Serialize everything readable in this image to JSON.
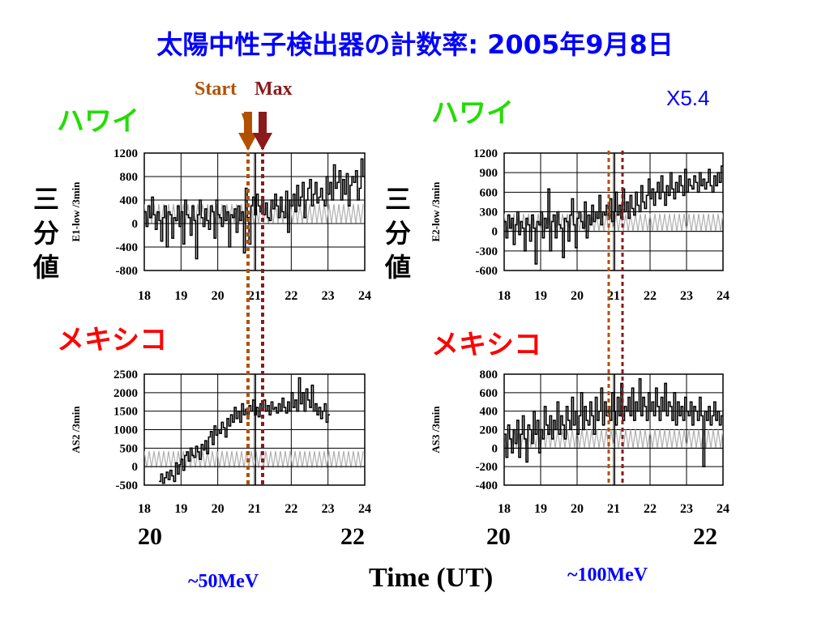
{
  "slide": {
    "title": "太陽中性子検出器の計数率: 2005年9月8日",
    "start_label": "Start",
    "max_label": "Max",
    "flare_class": "X5.4",
    "site_hawaii": "ハワイ",
    "site_mexico": "メキシコ",
    "vertical_label": "三分値",
    "time_label": "Time (UT)",
    "energy_left": "~50MeV",
    "energy_right": "~100MeV",
    "big_ticks": [
      "20",
      "22",
      "20",
      "22"
    ],
    "colors": {
      "title": "#0000ff",
      "hawaii": "#22dd00",
      "mexico": "#ff0000",
      "start_marker": "#b25000",
      "max_marker": "#8b1a1a"
    }
  },
  "chart_data": [
    {
      "type": "line",
      "ylabel": "E1-low /3min",
      "xlim": [
        18,
        24
      ],
      "ylim": [
        -800,
        1200
      ],
      "yticks": [
        1200,
        800,
        400,
        0,
        -400,
        -800
      ],
      "xticks": [
        18,
        19,
        20,
        21,
        22,
        23,
        24
      ],
      "start_time": 20.9,
      "max_time": 21.25,
      "bg_min": 0,
      "bg_max": 330,
      "x_start": 18,
      "x_step": 0.05,
      "values": [
        200,
        -50,
        300,
        100,
        450,
        150,
        -100,
        200,
        50,
        -300,
        100,
        300,
        -400,
        200,
        150,
        -250,
        100,
        50,
        300,
        -50,
        200,
        -350,
        400,
        150,
        100,
        -200,
        300,
        50,
        -600,
        150,
        400,
        100,
        -50,
        250,
        50,
        -100,
        300,
        200,
        -250,
        400,
        150,
        100,
        -50,
        300,
        50,
        200,
        -400,
        150,
        100,
        250,
        -150,
        300,
        50,
        200,
        -500,
        600,
        100,
        -350,
        300,
        450,
        150,
        500,
        300,
        200,
        450,
        150,
        350,
        100,
        50,
        400,
        250,
        500,
        300,
        100,
        450,
        200,
        100,
        550,
        -150,
        400,
        300,
        500,
        200,
        650,
        300,
        450,
        700,
        100,
        400,
        600,
        750,
        300,
        500,
        700,
        350,
        450,
        600,
        400,
        300,
        800,
        500,
        700,
        400,
        1000,
        600,
        700,
        900,
        400,
        750,
        500,
        850,
        300,
        650,
        800,
        700,
        900,
        400,
        600,
        1100,
        800
      ]
    },
    {
      "type": "line",
      "ylabel": "E2-low /3min",
      "xlim": [
        18,
        24
      ],
      "ylim": [
        -600,
        1200
      ],
      "yticks": [
        1200,
        900,
        600,
        300,
        0,
        -300,
        -600
      ],
      "xticks": [
        18,
        19,
        20,
        21,
        22,
        23,
        24
      ],
      "start_time": 20.9,
      "max_time": 21.25,
      "bg_min": 0,
      "bg_max": 270,
      "x_start": 18,
      "x_step": 0.05,
      "values": [
        150,
        -100,
        250,
        50,
        200,
        -200,
        100,
        300,
        -50,
        150,
        50,
        -300,
        200,
        100,
        -150,
        250,
        50,
        -500,
        150,
        100,
        300,
        -100,
        200,
        50,
        650,
        -300,
        150,
        250,
        -100,
        300,
        100,
        50,
        -400,
        200,
        150,
        -150,
        250,
        500,
        100,
        -250,
        200,
        300,
        150,
        50,
        450,
        -100,
        250,
        100,
        400,
        150,
        300,
        200,
        550,
        100,
        300,
        250,
        400,
        200,
        500,
        150,
        300,
        600,
        250,
        400,
        200,
        650,
        300,
        450,
        200,
        550,
        350,
        250,
        600,
        400,
        300,
        700,
        450,
        350,
        550,
        800,
        500,
        650,
        400,
        600,
        750,
        500,
        850,
        600,
        400,
        700,
        550,
        900,
        650,
        500,
        750,
        600,
        850,
        700,
        550,
        950,
        600,
        800,
        700,
        650,
        850,
        750,
        600,
        900,
        700,
        800,
        650,
        750,
        950,
        700,
        600,
        850,
        700,
        900,
        750,
        1000
      ]
    },
    {
      "type": "line",
      "ylabel": "AS2 /3min",
      "xlim": [
        18,
        24
      ],
      "ylim": [
        -500,
        2500
      ],
      "yticks": [
        2500,
        2000,
        1500,
        1000,
        500,
        0,
        -500
      ],
      "xticks": [
        18,
        19,
        20,
        21,
        22,
        23,
        24
      ],
      "start_time": 20.9,
      "max_time": 21.25,
      "bg_min": -30,
      "bg_max": 420,
      "x_start": 18.4,
      "x_step": 0.05,
      "values": [
        -400,
        -200,
        -450,
        -300,
        -150,
        -350,
        -100,
        -250,
        -400,
        100,
        -200,
        50,
        200,
        -100,
        300,
        400,
        150,
        500,
        300,
        250,
        550,
        400,
        200,
        600,
        450,
        700,
        350,
        800,
        950,
        600,
        1100,
        850,
        1000,
        900,
        1200,
        1050,
        800,
        1300,
        1100,
        1400,
        1200,
        1600,
        1300,
        1500,
        1200,
        1700,
        1400,
        1550,
        1300,
        1650,
        1500,
        1800,
        1400,
        1600,
        1350,
        1700,
        1550,
        1800,
        1500,
        1650,
        1400,
        1750,
        1550,
        1600,
        1450,
        1700,
        1500,
        1850,
        1600,
        1450,
        1750,
        1500,
        2000,
        1600,
        1800,
        1500,
        2400,
        1700,
        2000,
        1500,
        2100,
        1800,
        1600,
        2200,
        1500,
        1700,
        1400,
        1600,
        1300,
        1500,
        1700,
        1200,
        1400
      ]
    },
    {
      "type": "line",
      "ylabel": "AS3 /3min",
      "xlim": [
        18,
        24
      ],
      "ylim": [
        -400,
        800
      ],
      "yticks": [
        800,
        600,
        400,
        200,
        0,
        -200,
        -400
      ],
      "xticks": [
        18,
        19,
        20,
        21,
        22,
        23,
        24
      ],
      "start_time": 20.9,
      "max_time": 21.25,
      "bg_min": 0,
      "bg_max": 200,
      "x_start": 18,
      "x_step": 0.05,
      "values": [
        150,
        -100,
        250,
        100,
        -50,
        200,
        50,
        300,
        -100,
        150,
        350,
        100,
        -150,
        250,
        200,
        50,
        400,
        150,
        300,
        -50,
        200,
        100,
        450,
        250,
        150,
        350,
        100,
        300,
        200,
        500,
        150,
        350,
        250,
        100,
        450,
        300,
        200,
        550,
        250,
        400,
        150,
        350,
        600,
        200,
        450,
        300,
        250,
        500,
        350,
        150,
        550,
        300,
        400,
        650,
        250,
        500,
        350,
        450,
        300,
        600,
        400,
        250,
        550,
        350,
        700,
        300,
        450,
        400,
        550,
        350,
        650,
        300,
        500,
        400,
        750,
        350,
        550,
        450,
        300,
        600,
        400,
        500,
        350,
        650,
        450,
        300,
        550,
        400,
        700,
        350,
        500,
        450,
        300,
        600,
        250,
        500,
        350,
        450,
        300,
        550,
        400,
        350,
        500,
        250,
        450,
        400,
        300,
        550,
        350,
        -200,
        400,
        300,
        450,
        250,
        350,
        500,
        300,
        400,
        250,
        350
      ]
    }
  ]
}
